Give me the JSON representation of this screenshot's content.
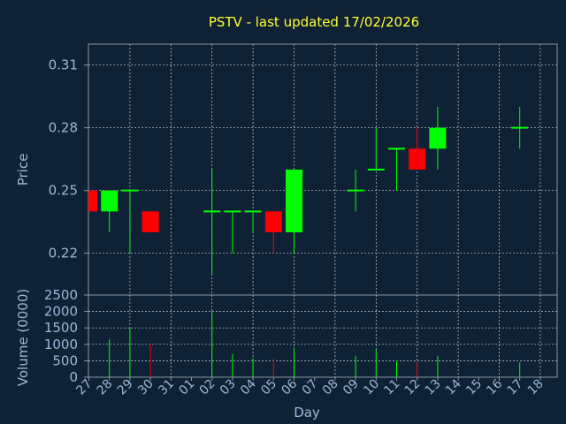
{
  "chart_data": {
    "type": "candlestick",
    "title": "PSTV - last updated 17/02/2026",
    "colors": {
      "background": "#0f2135",
      "up": "#00ff00",
      "down": "#ff0000",
      "text": "#9cb7d6",
      "title": "#ffff33"
    },
    "x_categories": [
      "27",
      "28",
      "29",
      "30",
      "31",
      "01",
      "02",
      "03",
      "04",
      "05",
      "06",
      "07",
      "08",
      "09",
      "10",
      "11",
      "12",
      "13",
      "14",
      "15",
      "16",
      "17",
      "18"
    ],
    "xlabel": "Day",
    "price_panel": {
      "ylabel": "Price",
      "ylim": [
        0.2,
        0.32
      ],
      "y_ticks": [
        "0.22",
        "0.25",
        "0.28",
        "0.31"
      ],
      "candles": [
        {
          "day": "27",
          "open": 0.25,
          "high": 0.25,
          "low": 0.24,
          "close": 0.24
        },
        {
          "day": "28",
          "open": 0.24,
          "high": 0.25,
          "low": 0.23,
          "close": 0.25
        },
        {
          "day": "29",
          "open": 0.25,
          "high": 0.25,
          "low": 0.22,
          "close": 0.25
        },
        {
          "day": "30",
          "open": 0.24,
          "high": 0.24,
          "low": 0.23,
          "close": 0.23
        },
        {
          "day": "02",
          "open": 0.24,
          "high": 0.26,
          "low": 0.21,
          "close": 0.24
        },
        {
          "day": "03",
          "open": 0.24,
          "high": 0.24,
          "low": 0.22,
          "close": 0.24
        },
        {
          "day": "04",
          "open": 0.24,
          "high": 0.24,
          "low": 0.23,
          "close": 0.24
        },
        {
          "day": "05",
          "open": 0.24,
          "high": 0.24,
          "low": 0.22,
          "close": 0.23
        },
        {
          "day": "06",
          "open": 0.23,
          "high": 0.26,
          "low": 0.22,
          "close": 0.26
        },
        {
          "day": "09",
          "open": 0.25,
          "high": 0.26,
          "low": 0.24,
          "close": 0.25
        },
        {
          "day": "10",
          "open": 0.26,
          "high": 0.28,
          "low": 0.26,
          "close": 0.26
        },
        {
          "day": "11",
          "open": 0.27,
          "high": 0.27,
          "low": 0.25,
          "close": 0.27
        },
        {
          "day": "12",
          "open": 0.27,
          "high": 0.28,
          "low": 0.26,
          "close": 0.26
        },
        {
          "day": "13",
          "open": 0.27,
          "high": 0.29,
          "low": 0.26,
          "close": 0.28
        },
        {
          "day": "17",
          "open": 0.28,
          "high": 0.29,
          "low": 0.27,
          "close": 0.28
        }
      ]
    },
    "volume_panel": {
      "ylabel": "Volume (0000)",
      "ylim": [
        0,
        2500
      ],
      "y_ticks": [
        "0",
        "500",
        "1000",
        "1500",
        "2000",
        "2500"
      ],
      "bars": [
        {
          "day": "28",
          "value": 1150,
          "direction": "up"
        },
        {
          "day": "29",
          "value": 1500,
          "direction": "up"
        },
        {
          "day": "30",
          "value": 1020,
          "direction": "down"
        },
        {
          "day": "02",
          "value": 2000,
          "direction": "up"
        },
        {
          "day": "03",
          "value": 700,
          "direction": "up"
        },
        {
          "day": "04",
          "value": 580,
          "direction": "up"
        },
        {
          "day": "05",
          "value": 560,
          "direction": "down"
        },
        {
          "day": "06",
          "value": 900,
          "direction": "up"
        },
        {
          "day": "09",
          "value": 650,
          "direction": "up"
        },
        {
          "day": "10",
          "value": 850,
          "direction": "up"
        },
        {
          "day": "11",
          "value": 480,
          "direction": "up"
        },
        {
          "day": "12",
          "value": 450,
          "direction": "down"
        },
        {
          "day": "13",
          "value": 650,
          "direction": "up"
        },
        {
          "day": "17",
          "value": 450,
          "direction": "up"
        }
      ]
    },
    "grid": true
  }
}
